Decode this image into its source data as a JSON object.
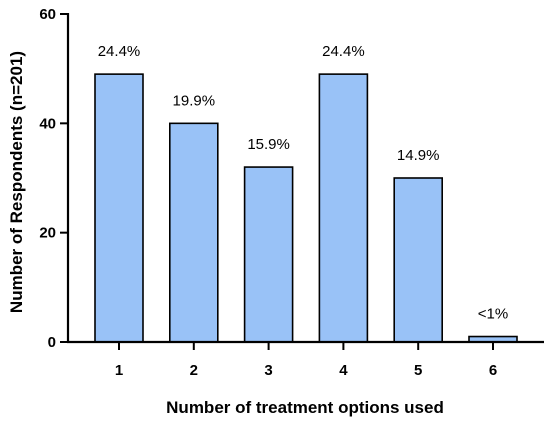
{
  "chart_data": {
    "type": "bar",
    "categories": [
      "1",
      "2",
      "3",
      "4",
      "5",
      "6"
    ],
    "values": [
      49,
      40,
      32,
      49,
      30,
      1
    ],
    "data_labels": [
      "24.4%",
      "19.9%",
      "15.9%",
      "24.4%",
      "14.9%",
      "<1%"
    ],
    "y_ticks": [
      "0",
      "20",
      "40",
      "60"
    ],
    "ylim": [
      0,
      60
    ],
    "xlabel": "Number of treatment options used",
    "ylabel": "Number of Respondents (n=201)",
    "grid": false,
    "legend": "none",
    "colors": {
      "bar_fill": "#99c2f7",
      "bar_stroke": "#000000"
    }
  }
}
